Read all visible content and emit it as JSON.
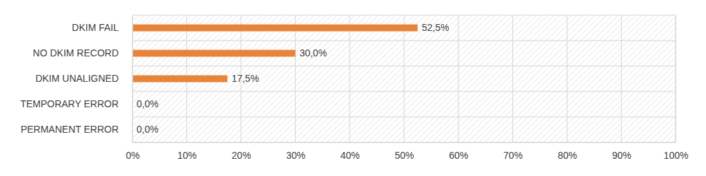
{
  "chart_data": {
    "type": "bar",
    "orientation": "horizontal",
    "categories": [
      "DKIM FAIL",
      "NO DKIM RECORD",
      "DKIM UNALIGNED",
      "TEMPORARY ERROR",
      "PERMANENT ERROR"
    ],
    "values": [
      52.5,
      30.0,
      17.5,
      0.0,
      0.0
    ],
    "value_labels": [
      "52,5%",
      "30,0%",
      "17,5%",
      "0,0%",
      "0,0%"
    ],
    "color": "#e8843a",
    "xlim": [
      0,
      100
    ],
    "xticks": [
      {
        "value": 0,
        "label": "0%"
      },
      {
        "value": 10,
        "label": "10%"
      },
      {
        "value": 20,
        "label": "20%"
      },
      {
        "value": 30,
        "label": "30%"
      },
      {
        "value": 40,
        "label": "40%"
      },
      {
        "value": 50,
        "label": "50%"
      },
      {
        "value": 60,
        "label": "60%"
      },
      {
        "value": 70,
        "label": "70%"
      },
      {
        "value": 80,
        "label": "80%"
      },
      {
        "value": 90,
        "label": "90%"
      },
      {
        "value": 100,
        "label": "100%"
      }
    ],
    "grid": true,
    "data_labels": true
  }
}
